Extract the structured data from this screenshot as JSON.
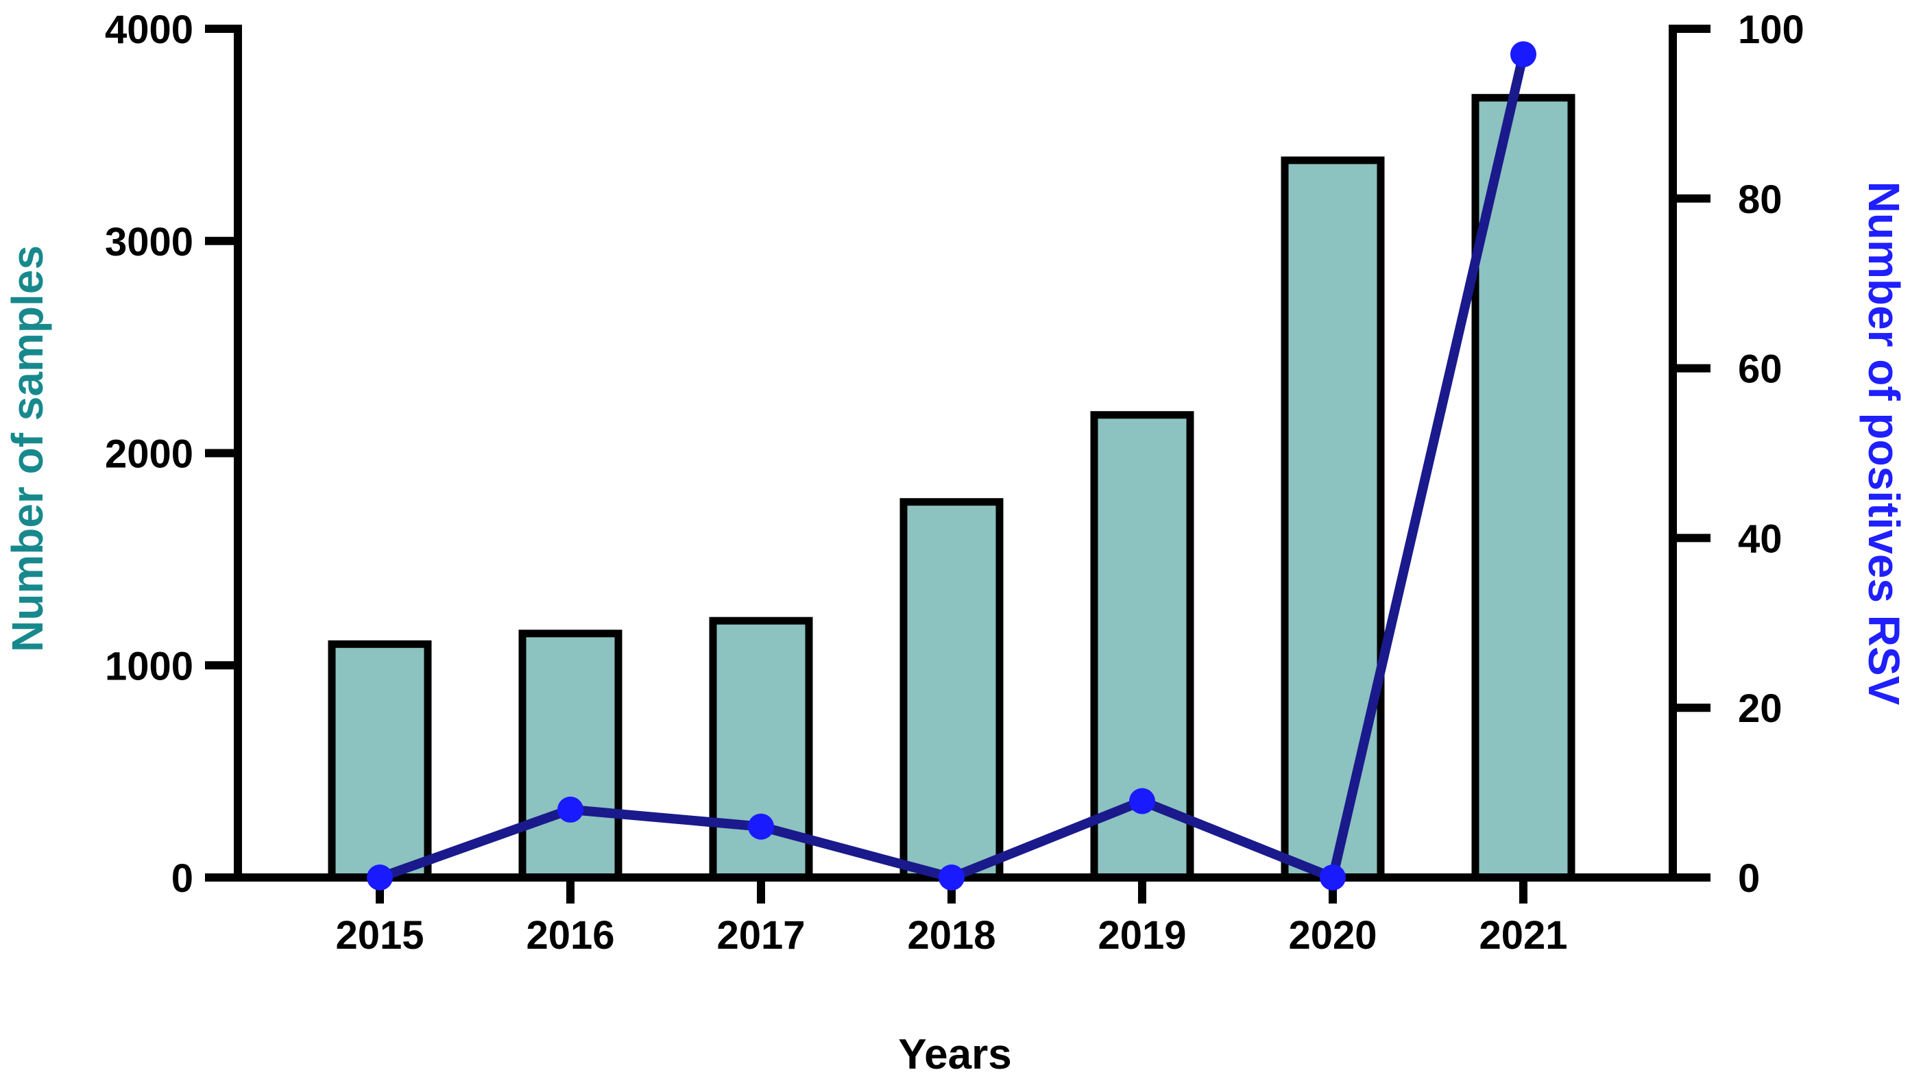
{
  "figure": {
    "background": "#ffffff"
  },
  "chart_data": {
    "type": "bar",
    "subtype": "bar+line combo, dual y-axes",
    "categories": [
      "2015",
      "2016",
      "2017",
      "2018",
      "2019",
      "2020",
      "2021"
    ],
    "series": [
      {
        "name": "Number of samples",
        "type": "bar",
        "axis": "left",
        "values": [
          1100,
          1150,
          1210,
          1770,
          2180,
          3380,
          3675
        ],
        "fill": "#8CC2BF",
        "stroke": "#000000"
      },
      {
        "name": "Number of positives RSV",
        "type": "line",
        "axis": "right",
        "values": [
          0,
          8,
          6,
          0,
          9,
          0,
          97
        ],
        "line_color": "#1A1A8C",
        "marker_color": "#1A1AFF",
        "marker": "circle"
      }
    ],
    "left_axis": {
      "title": "Number of samples",
      "title_color": "#17898D",
      "min": 0,
      "max": 4000,
      "tick_step": 1000,
      "tick_labels": [
        "0",
        "1000",
        "2000",
        "3000",
        "4000"
      ]
    },
    "right_axis": {
      "title": "Number of positives RSV",
      "title_color": "#1F1FFF",
      "min": 0,
      "max": 100,
      "tick_step": 20,
      "tick_labels": [
        "0",
        "20",
        "40",
        "60",
        "80",
        "100"
      ]
    },
    "x_axis": {
      "title": "Years",
      "tick_labels": [
        "2015",
        "2016",
        "2017",
        "2018",
        "2019",
        "2020",
        "2021"
      ]
    },
    "grid": false,
    "legend": "none",
    "axis_color": "#000000"
  }
}
